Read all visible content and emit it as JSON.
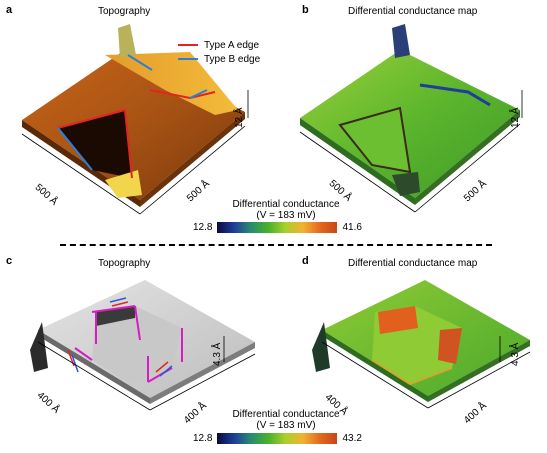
{
  "panels": {
    "a": {
      "label": "a",
      "title": "Topography",
      "z": "12 Å",
      "x1": "500 Å",
      "x2": "500 Å"
    },
    "b": {
      "label": "b",
      "title": "Differential conductance map",
      "z": "12 Å",
      "x1": "500 Å",
      "x2": "500 Å"
    },
    "c": {
      "label": "c",
      "title": "Topography",
      "z": "4.3 Å",
      "x1": "400 Å",
      "x2": "400 Å"
    },
    "d": {
      "label": "d",
      "title": "Differential conductance map",
      "z": "4.3 Å",
      "x1": "400 Å",
      "x2": "400 Å"
    }
  },
  "legend": {
    "type_a": "Type A edge",
    "type_b": "Type B edge",
    "type_a_color": "#e0261f",
    "type_b_color": "#2b7fd6"
  },
  "colorbars": {
    "top": {
      "title": "Differential conductance",
      "sub": "(V = 183 mV)",
      "min": "12.8",
      "max": "41.6"
    },
    "bottom": {
      "title": "Differential conductance",
      "sub": "(V = 183 mV)",
      "min": "12.8",
      "max": "43.2"
    }
  }
}
